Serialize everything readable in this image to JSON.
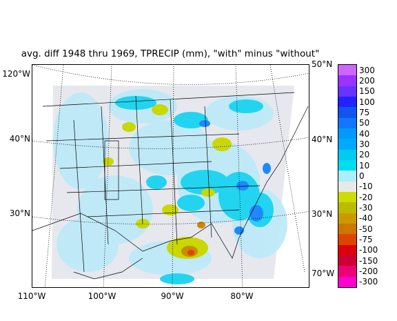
{
  "title": "avg. diff 1948 thru 1969, TPRECIP (mm), \"with\" minus \"without\"",
  "map": {
    "left_lat_labels": [
      "120°W",
      "40°N",
      "30°N"
    ],
    "right_lat_labels": [
      "50°N",
      "40°N",
      "30°N",
      "70°W"
    ],
    "bottom_lon_labels": [
      "110°W",
      "100°W",
      "90°W",
      "80°W"
    ]
  },
  "colorbar": {
    "levels": [
      "300",
      "200",
      "150",
      "100",
      "75",
      "50",
      "40",
      "30",
      "20",
      "10",
      "0",
      "-10",
      "-20",
      "-30",
      "-40",
      "-50",
      "-75",
      "-100",
      "-150",
      "-200",
      "-300"
    ],
    "colors": [
      "#cc66ff",
      "#9a33ff",
      "#6633ff",
      "#2222ff",
      "#1155ee",
      "#1177ff",
      "#0099ff",
      "#00aaff",
      "#00ccee",
      "#00ddee",
      "#aaeeff",
      "#e8e8e8",
      "#ccdd00",
      "#bbbb00",
      "#cc9900",
      "#cc7700",
      "#dd4400",
      "#dd0011",
      "#cc0033",
      "#ee0077",
      "#ff00cc"
    ]
  }
}
